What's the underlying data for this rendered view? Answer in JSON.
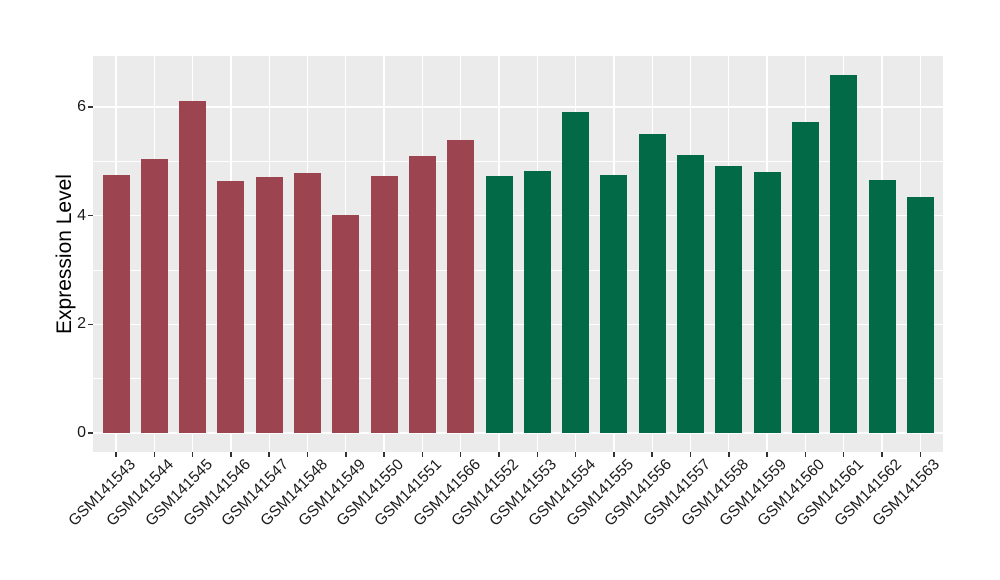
{
  "chart_data": {
    "type": "bar",
    "title": "",
    "xlabel": "",
    "ylabel": "Expression Level",
    "categories": [
      "GSM141543",
      "GSM141544",
      "GSM141545",
      "GSM141546",
      "GSM141547",
      "GSM141548",
      "GSM141549",
      "GSM141550",
      "GSM141551",
      "GSM141566",
      "GSM141552",
      "GSM141553",
      "GSM141554",
      "GSM141555",
      "GSM141556",
      "GSM141557",
      "GSM141558",
      "GSM141559",
      "GSM141560",
      "GSM141561",
      "GSM141562",
      "GSM141563"
    ],
    "values": [
      4.75,
      5.04,
      6.11,
      4.64,
      4.71,
      4.79,
      4.02,
      4.73,
      5.1,
      5.39,
      4.73,
      4.82,
      5.91,
      4.75,
      5.5,
      5.12,
      4.91,
      4.8,
      5.72,
      6.59,
      4.66,
      4.35
    ],
    "bar_group": [
      "group1",
      "group1",
      "group1",
      "group1",
      "group1",
      "group1",
      "group1",
      "group1",
      "group1",
      "group1",
      "group2",
      "group2",
      "group2",
      "group2",
      "group2",
      "group2",
      "group2",
      "group2",
      "group2",
      "group2",
      "group2",
      "group2"
    ],
    "group_colors": {
      "group1": "#9C4450",
      "group2": "#026A47"
    },
    "yticks": [
      0,
      2,
      4,
      6
    ],
    "ytick_labels": [
      "0",
      "2",
      "4",
      "6"
    ],
    "yticks_minor": [
      1,
      3,
      5
    ],
    "ylim": [
      0,
      6.94
    ],
    "grid": "horizontal major+minor, vertical at category centers",
    "legend_position": "none",
    "panel_bg": "#EBEBEB",
    "grid_color": "#FFFFFF",
    "axis_text_color": "#1A1A1A"
  }
}
